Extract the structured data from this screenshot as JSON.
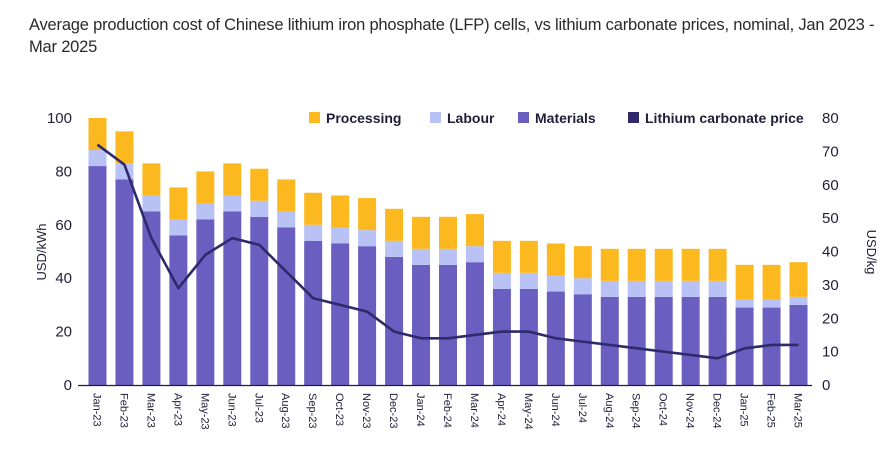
{
  "title": "Average production cost of Chinese lithium iron phosphate (LFP) cells, vs lithium carbonate prices, nominal, Jan 2023 - Mar 2025",
  "chart_data": {
    "type": "bar",
    "stacked": true,
    "title": "Average production cost of Chinese lithium iron phosphate (LFP) cells, vs lithium carbonate prices, nominal, Jan 2023 - Mar 2025",
    "ylabel": "USD/kWh",
    "y2label": "USD/kg",
    "ylim": [
      0,
      100
    ],
    "y2lim": [
      0,
      80
    ],
    "yticks": [
      "0",
      "20",
      "40",
      "60",
      "80",
      "100"
    ],
    "y2ticks": [
      "0",
      "10",
      "20",
      "30",
      "40",
      "50",
      "60",
      "70",
      "80"
    ],
    "legend_position": "top-right",
    "categories": [
      "Jan-23",
      "Feb-23",
      "Mar-23",
      "Apr-23",
      "May-23",
      "Jun-23",
      "Jul-23",
      "Aug-23",
      "Sep-23",
      "Oct-23",
      "Nov-23",
      "Dec-23",
      "Jan-24",
      "Feb-24",
      "Mar-24",
      "Apr-24",
      "May-24",
      "Jun-24",
      "Jul-24",
      "Aug-24",
      "Sep-24",
      "Oct-24",
      "Nov-24",
      "Dec-24",
      "Jan-25",
      "Feb-25",
      "Mar-25"
    ],
    "series": [
      {
        "name": "Materials",
        "axis": "left",
        "kind": "bar",
        "color": "#6a5fc1",
        "values": [
          82,
          77,
          65,
          56,
          62,
          65,
          63,
          59,
          54,
          53,
          52,
          48,
          45,
          45,
          46,
          36,
          36,
          35,
          34,
          33,
          33,
          33,
          33,
          33,
          29,
          29,
          30
        ]
      },
      {
        "name": "Labour",
        "axis": "left",
        "kind": "bar",
        "color": "#b8c2f5",
        "values": [
          6,
          6,
          6,
          6,
          6,
          6,
          6,
          6,
          6,
          6,
          6,
          6,
          6,
          6,
          6,
          6,
          6,
          6,
          6,
          6,
          6,
          6,
          6,
          6,
          3,
          3,
          3
        ]
      },
      {
        "name": "Processing",
        "axis": "left",
        "kind": "bar",
        "color": "#fbb81f",
        "values": [
          12,
          12,
          12,
          12,
          12,
          12,
          12,
          12,
          12,
          12,
          12,
          12,
          12,
          12,
          12,
          12,
          12,
          12,
          12,
          12,
          12,
          12,
          12,
          12,
          13,
          13,
          13
        ]
      },
      {
        "name": "Lithium carbonate price",
        "axis": "right",
        "kind": "line",
        "color": "#2e2a6b",
        "values": [
          72,
          66,
          44,
          29,
          39,
          44,
          42,
          34,
          26,
          24,
          22,
          16,
          14,
          14,
          15,
          16,
          16,
          14,
          13,
          12,
          11,
          10,
          9,
          8,
          11,
          12,
          12
        ]
      }
    ],
    "legend": [
      "Processing",
      "Labour",
      "Materials",
      "Lithium carbonate price"
    ]
  }
}
